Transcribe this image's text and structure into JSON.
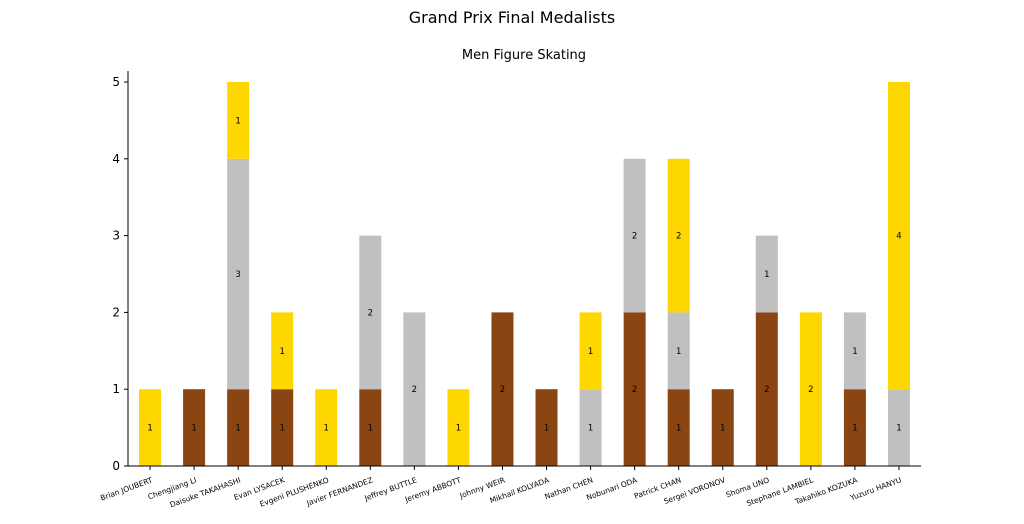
{
  "chart_data": {
    "type": "bar",
    "stacked": true,
    "title": "Grand Prix Final Medalists",
    "subtitle": "Men Figure Skating",
    "xlabel": "",
    "ylabel": "",
    "ylim": [
      0,
      5.2
    ],
    "yticks": [
      "0",
      "1",
      "2",
      "3",
      "4",
      "5"
    ],
    "grid": false,
    "categories": [
      "Brian JOUBERT",
      "Chengjiang LI",
      "Daisuke TAKAHASHI",
      "Evan LYSACEK",
      "Evgeni PLUSHENKO",
      "Javier FERNANDEZ",
      "Jeffrey BUTTLE",
      "Jeremy ABBOTT",
      "Johnny WEIR",
      "Mikhail KOLYADA",
      "Nathan CHEN",
      "Nobunari ODA",
      "Patrick CHAN",
      "Sergei VORONOV",
      "Shoma UNO",
      "Stephane LAMBIEL",
      "Takahiko KOZUKA",
      "Yuzuru HANYU"
    ],
    "series": [
      {
        "key": "bronze",
        "color": "#8B4513",
        "values": [
          0,
          1,
          1,
          1,
          0,
          1,
          0,
          0,
          2,
          1,
          0,
          2,
          1,
          1,
          2,
          0,
          1,
          0
        ]
      },
      {
        "key": "silver",
        "color": "#C0C0C0",
        "values": [
          0,
          0,
          3,
          0,
          0,
          2,
          2,
          0,
          0,
          0,
          1,
          2,
          1,
          0,
          1,
          0,
          1,
          1
        ]
      },
      {
        "key": "gold",
        "color": "#FFD700",
        "values": [
          1,
          0,
          1,
          1,
          1,
          0,
          0,
          1,
          0,
          0,
          1,
          0,
          2,
          0,
          0,
          2,
          0,
          4
        ]
      }
    ]
  }
}
